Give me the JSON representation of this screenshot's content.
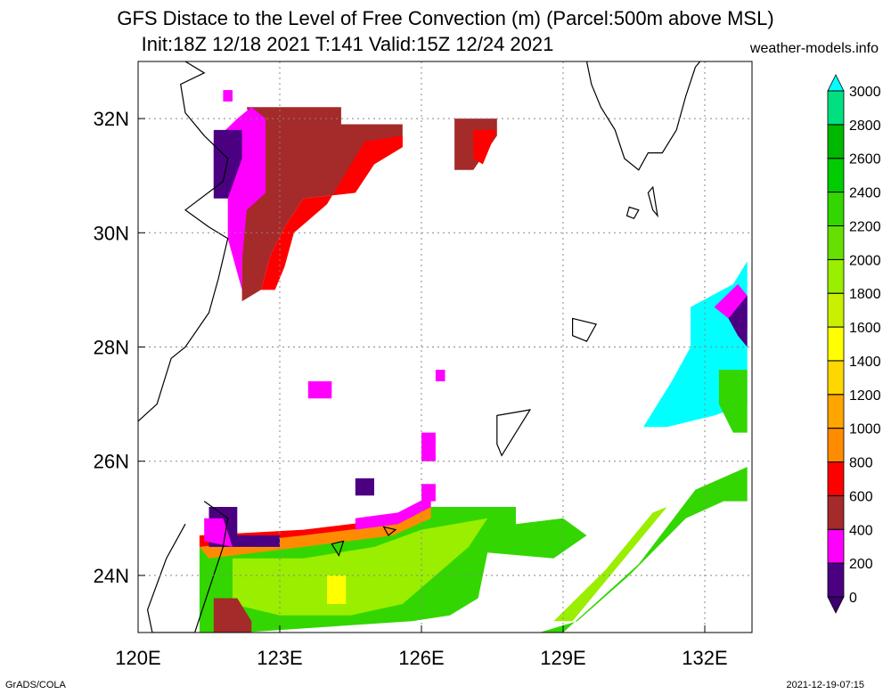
{
  "title_line1": "GFS Distace to the Level of Free Convection (m) (Parcel:500m above MSL)",
  "title_line2": "Init:18Z 12/18 2021 T:141 Valid:15Z 12/24 2021",
  "site": "weather-models.info",
  "footer_left": "GrADS/COLA",
  "footer_right": "2021-12-19-07:15",
  "map": {
    "lon_range": [
      120,
      133
    ],
    "lat_range": [
      23,
      33
    ],
    "lon_ticks": [
      {
        "value": 120,
        "label": "120E"
      },
      {
        "value": 123,
        "label": "123E"
      },
      {
        "value": 126,
        "label": "126E"
      },
      {
        "value": 129,
        "label": "129E"
      },
      {
        "value": 132,
        "label": "132E"
      }
    ],
    "lat_ticks": [
      {
        "value": 24,
        "label": "24N"
      },
      {
        "value": 26,
        "label": "26N"
      },
      {
        "value": 28,
        "label": "28N"
      },
      {
        "value": 30,
        "label": "30N"
      },
      {
        "value": 32,
        "label": "32N"
      }
    ]
  },
  "colorbar": {
    "levels": [
      {
        "value": 0,
        "label": "0",
        "color": "#4b0082"
      },
      {
        "value": 200,
        "label": "200",
        "color": "#ff00ff"
      },
      {
        "value": 400,
        "label": "400",
        "color": "#a52a2a"
      },
      {
        "value": 600,
        "label": "600",
        "color": "#ff0000"
      },
      {
        "value": 800,
        "label": "800",
        "color": "#ff8c00"
      },
      {
        "value": 1000,
        "label": "1000",
        "color": "#ffa500"
      },
      {
        "value": 1200,
        "label": "1200",
        "color": "#ffd700"
      },
      {
        "value": 1400,
        "label": "1400",
        "color": "#ffff00"
      },
      {
        "value": 1600,
        "label": "1600",
        "color": "#c8f000"
      },
      {
        "value": 1800,
        "label": "1800",
        "color": "#9aee00"
      },
      {
        "value": 2000,
        "label": "2000",
        "color": "#66e000"
      },
      {
        "value": 2200,
        "label": "2200",
        "color": "#33d600"
      },
      {
        "value": 2400,
        "label": "2400",
        "color": "#00cc00"
      },
      {
        "value": 2600,
        "label": "2600",
        "color": "#00b800"
      },
      {
        "value": 2800,
        "label": "2800",
        "color": "#00e080"
      },
      {
        "value": 3000,
        "label": "3000",
        "color": "#00e6cc"
      }
    ],
    "over_color": "#00ffff",
    "under_color": "#3a0070"
  },
  "fields": [
    {
      "name": "northwest-low-lfc",
      "color": "#a52a2a",
      "points": [
        [
          122.3,
          32.2
        ],
        [
          124.3,
          32.2
        ],
        [
          124.3,
          31.9
        ],
        [
          125.6,
          31.9
        ],
        [
          125.6,
          31.5
        ],
        [
          125.0,
          31.2
        ],
        [
          124.6,
          30.7
        ],
        [
          123.5,
          30.6
        ],
        [
          123.1,
          30.1
        ],
        [
          122.8,
          29.6
        ],
        [
          122.6,
          29.0
        ],
        [
          122.2,
          28.8
        ],
        [
          122.2,
          30.5
        ],
        [
          122.5,
          31.5
        ]
      ]
    },
    {
      "name": "northwest-red-fringe",
      "color": "#ff0000",
      "points": [
        [
          122.6,
          29.0
        ],
        [
          122.8,
          29.6
        ],
        [
          123.1,
          30.1
        ],
        [
          123.5,
          30.6
        ],
        [
          124.6,
          30.7
        ],
        [
          125.0,
          31.2
        ],
        [
          125.6,
          31.5
        ],
        [
          125.6,
          31.7
        ],
        [
          124.8,
          31.6
        ],
        [
          124.0,
          30.5
        ],
        [
          123.3,
          30.0
        ],
        [
          123.1,
          29.4
        ],
        [
          122.9,
          29.0
        ]
      ]
    },
    {
      "name": "northwest-magenta",
      "color": "#ff00ff",
      "points": [
        [
          122.1,
          32.0
        ],
        [
          122.4,
          32.2
        ],
        [
          122.7,
          32.0
        ],
        [
          122.7,
          30.7
        ],
        [
          122.3,
          30.4
        ],
        [
          122.2,
          29.5
        ],
        [
          122.2,
          29.0
        ],
        [
          121.9,
          29.9
        ],
        [
          121.9,
          30.6
        ],
        [
          121.6,
          30.8
        ],
        [
          121.6,
          31.6
        ]
      ]
    },
    {
      "name": "northwest-indigo",
      "color": "#4b0082",
      "points": [
        [
          121.6,
          31.8
        ],
        [
          122.2,
          31.8
        ],
        [
          122.2,
          31.3
        ],
        [
          121.9,
          30.6
        ],
        [
          121.6,
          30.6
        ]
      ]
    },
    {
      "name": "east-china-sea-brown-patch",
      "color": "#a52a2a",
      "points": [
        [
          126.7,
          32.0
        ],
        [
          127.6,
          32.0
        ],
        [
          127.6,
          31.7
        ],
        [
          127.1,
          31.1
        ],
        [
          126.7,
          31.1
        ]
      ]
    },
    {
      "name": "east-china-sea-red-patch",
      "color": "#ff0000",
      "points": [
        [
          127.1,
          31.8
        ],
        [
          127.6,
          31.8
        ],
        [
          127.3,
          31.2
        ],
        [
          127.1,
          31.3
        ]
      ]
    },
    {
      "name": "south-green-band",
      "color": "#33d600",
      "points": [
        [
          121.3,
          24.5
        ],
        [
          123.5,
          24.7
        ],
        [
          125.5,
          24.9
        ],
        [
          126.2,
          25.2
        ],
        [
          128.0,
          25.2
        ],
        [
          128.0,
          24.9
        ],
        [
          129.0,
          25.0
        ],
        [
          129.5,
          24.7
        ],
        [
          128.8,
          24.3
        ],
        [
          127.4,
          24.4
        ],
        [
          127.2,
          23.6
        ],
        [
          126.6,
          23.3
        ],
        [
          125.8,
          23.2
        ],
        [
          122.2,
          23.0
        ],
        [
          121.3,
          23.0
        ]
      ]
    },
    {
      "name": "south-lightgreen-core",
      "color": "#9aee00",
      "points": [
        [
          122.0,
          24.3
        ],
        [
          123.5,
          24.3
        ],
        [
          125.0,
          24.5
        ],
        [
          126.0,
          24.8
        ],
        [
          127.4,
          25.0
        ],
        [
          127.0,
          24.5
        ],
        [
          126.3,
          24.0
        ],
        [
          125.6,
          23.5
        ],
        [
          124.5,
          23.3
        ],
        [
          123.0,
          23.3
        ],
        [
          122.0,
          23.5
        ]
      ]
    },
    {
      "name": "south-yellow-spots",
      "color": "#ffff00",
      "points": [
        [
          124.0,
          24.0
        ],
        [
          124.4,
          24.0
        ],
        [
          124.4,
          23.5
        ],
        [
          124.0,
          23.5
        ]
      ]
    },
    {
      "name": "south-orange-edge",
      "color": "#ff8c00",
      "points": [
        [
          121.3,
          24.5
        ],
        [
          123.5,
          24.7
        ],
        [
          125.5,
          24.9
        ],
        [
          126.2,
          25.2
        ],
        [
          126.2,
          25.0
        ],
        [
          125.4,
          24.7
        ],
        [
          123.5,
          24.5
        ],
        [
          121.5,
          24.3
        ]
      ]
    },
    {
      "name": "south-red-edge",
      "color": "#ff0000",
      "points": [
        [
          121.3,
          24.7
        ],
        [
          123.5,
          24.8
        ],
        [
          125.5,
          25.0
        ],
        [
          126.2,
          25.3
        ],
        [
          126.2,
          25.2
        ],
        [
          125.5,
          24.9
        ],
        [
          123.5,
          24.7
        ],
        [
          121.3,
          24.5
        ]
      ]
    },
    {
      "name": "south-magenta-edge",
      "color": "#ff00ff",
      "points": [
        [
          124.6,
          25.0
        ],
        [
          125.5,
          25.1
        ],
        [
          126.2,
          25.4
        ],
        [
          126.2,
          25.2
        ],
        [
          125.5,
          24.9
        ],
        [
          124.6,
          24.8
        ]
      ]
    },
    {
      "name": "taiwan-strait-indigo",
      "color": "#4b0082",
      "points": [
        [
          121.5,
          25.2
        ],
        [
          122.1,
          25.2
        ],
        [
          122.1,
          24.7
        ],
        [
          123.0,
          24.7
        ],
        [
          123.0,
          24.5
        ],
        [
          121.5,
          24.5
        ]
      ]
    },
    {
      "name": "taiwan-magenta",
      "color": "#ff00ff",
      "points": [
        [
          121.4,
          25.0
        ],
        [
          121.8,
          25.0
        ],
        [
          122.0,
          24.5
        ],
        [
          121.4,
          24.6
        ]
      ]
    },
    {
      "name": "south-brown-spot",
      "color": "#a52a2a",
      "points": [
        [
          121.6,
          23.6
        ],
        [
          122.1,
          23.6
        ],
        [
          122.4,
          23.2
        ],
        [
          122.4,
          23.0
        ],
        [
          121.6,
          23.0
        ]
      ]
    },
    {
      "name": "southeast-diagonal-green",
      "color": "#33d600",
      "points": [
        [
          128.5,
          23.0
        ],
        [
          129.0,
          23.0
        ],
        [
          130.6,
          24.2
        ],
        [
          131.8,
          25.5
        ],
        [
          132.9,
          25.9
        ],
        [
          132.9,
          25.3
        ],
        [
          132.4,
          25.3
        ],
        [
          131.6,
          25.0
        ],
        [
          130.4,
          24.0
        ],
        [
          129.3,
          23.2
        ]
      ]
    },
    {
      "name": "southeast-lightgreen",
      "color": "#9aee00",
      "points": [
        [
          128.8,
          23.2
        ],
        [
          129.2,
          23.2
        ],
        [
          130.3,
          24.3
        ],
        [
          131.2,
          25.2
        ],
        [
          130.9,
          25.1
        ],
        [
          129.9,
          24.1
        ]
      ]
    },
    {
      "name": "far-east-cyan",
      "color": "#00ffff",
      "points": [
        [
          131.7,
          28.7
        ],
        [
          132.6,
          29.1
        ],
        [
          132.9,
          29.5
        ],
        [
          132.9,
          27.0
        ],
        [
          132.2,
          26.8
        ],
        [
          131.2,
          26.6
        ],
        [
          130.7,
          26.6
        ],
        [
          131.3,
          27.4
        ],
        [
          131.7,
          28.0
        ]
      ]
    },
    {
      "name": "far-east-green",
      "color": "#33d600",
      "points": [
        [
          132.3,
          27.6
        ],
        [
          132.9,
          27.6
        ],
        [
          132.9,
          26.5
        ],
        [
          132.6,
          26.5
        ],
        [
          132.3,
          27.0
        ]
      ]
    },
    {
      "name": "far-east-magenta",
      "color": "#ff00ff",
      "points": [
        [
          132.2,
          28.7
        ],
        [
          132.7,
          29.1
        ],
        [
          132.9,
          28.9
        ],
        [
          132.9,
          28.3
        ],
        [
          132.5,
          28.5
        ]
      ]
    },
    {
      "name": "far-east-indigo",
      "color": "#4b0082",
      "points": [
        [
          132.5,
          28.5
        ],
        [
          132.9,
          28.9
        ],
        [
          132.9,
          28.0
        ],
        [
          132.7,
          28.2
        ]
      ]
    },
    {
      "name": "scattered-magenta-1",
      "color": "#ff00ff",
      "points": [
        [
          123.6,
          27.4
        ],
        [
          124.1,
          27.4
        ],
        [
          124.1,
          27.1
        ],
        [
          123.6,
          27.1
        ]
      ]
    },
    {
      "name": "scattered-magenta-2",
      "color": "#ff00ff",
      "points": [
        [
          126.3,
          27.6
        ],
        [
          126.5,
          27.6
        ],
        [
          126.5,
          27.4
        ],
        [
          126.3,
          27.4
        ]
      ]
    },
    {
      "name": "scattered-magenta-3",
      "color": "#ff00ff",
      "points": [
        [
          126.0,
          26.5
        ],
        [
          126.3,
          26.5
        ],
        [
          126.3,
          26.0
        ],
        [
          126.0,
          26.0
        ]
      ]
    },
    {
      "name": "scattered-indigo-1",
      "color": "#4b0082",
      "points": [
        [
          124.6,
          25.7
        ],
        [
          125.0,
          25.7
        ],
        [
          125.0,
          25.4
        ],
        [
          124.6,
          25.4
        ]
      ]
    },
    {
      "name": "scattered-magenta-4",
      "color": "#ff00ff",
      "points": [
        [
          121.8,
          32.5
        ],
        [
          122.0,
          32.5
        ],
        [
          122.0,
          32.3
        ],
        [
          121.8,
          32.3
        ]
      ]
    },
    {
      "name": "scattered-magenta-5",
      "color": "#ff00ff",
      "points": [
        [
          126.0,
          25.6
        ],
        [
          126.3,
          25.6
        ],
        [
          126.3,
          25.3
        ],
        [
          126.0,
          25.3
        ]
      ]
    }
  ],
  "islands": [
    {
      "name": "kyushu-coast",
      "points": [
        [
          129.5,
          33.0
        ],
        [
          129.6,
          32.6
        ],
        [
          129.8,
          32.2
        ],
        [
          130.1,
          31.8
        ],
        [
          130.3,
          31.3
        ],
        [
          130.6,
          31.1
        ],
        [
          130.8,
          31.4
        ],
        [
          131.1,
          31.4
        ],
        [
          131.4,
          31.8
        ],
        [
          131.6,
          32.4
        ],
        [
          131.8,
          32.9
        ],
        [
          131.9,
          33.0
        ]
      ]
    },
    {
      "name": "tanegashima",
      "points": [
        [
          130.9,
          30.8
        ],
        [
          131.0,
          30.3
        ],
        [
          130.9,
          30.4
        ],
        [
          130.8,
          30.7
        ]
      ]
    },
    {
      "name": "yakushima",
      "points": [
        [
          130.4,
          30.45
        ],
        [
          130.6,
          30.4
        ],
        [
          130.5,
          30.25
        ],
        [
          130.35,
          30.3
        ]
      ]
    },
    {
      "name": "amami",
      "points": [
        [
          129.2,
          28.5
        ],
        [
          129.7,
          28.4
        ],
        [
          129.5,
          28.1
        ],
        [
          129.2,
          28.2
        ]
      ]
    },
    {
      "name": "okinawa",
      "points": [
        [
          127.6,
          26.8
        ],
        [
          128.3,
          26.9
        ],
        [
          128.0,
          26.5
        ],
        [
          127.7,
          26.1
        ],
        [
          127.6,
          26.3
        ]
      ]
    },
    {
      "name": "miyako",
      "points": [
        [
          125.2,
          24.85
        ],
        [
          125.45,
          24.8
        ],
        [
          125.3,
          24.7
        ]
      ]
    },
    {
      "name": "ishigaki",
      "points": [
        [
          124.1,
          24.55
        ],
        [
          124.35,
          24.6
        ],
        [
          124.25,
          24.35
        ]
      ]
    },
    {
      "name": "taiwan-coast",
      "points": [
        [
          121.4,
          25.3
        ],
        [
          121.9,
          25.0
        ],
        [
          121.8,
          24.5
        ],
        [
          121.6,
          24.0
        ],
        [
          121.4,
          23.5
        ],
        [
          121.2,
          23.0
        ],
        [
          120.3,
          23.0
        ],
        [
          120.2,
          23.4
        ],
        [
          120.6,
          24.3
        ],
        [
          121.0,
          24.9
        ]
      ]
    },
    {
      "name": "china-coast",
      "points": [
        [
          120.0,
          26.7
        ],
        [
          120.4,
          27.0
        ],
        [
          120.7,
          27.8
        ],
        [
          121.0,
          28.0
        ],
        [
          121.5,
          28.6
        ],
        [
          121.7,
          29.2
        ],
        [
          121.9,
          29.9
        ],
        [
          121.5,
          30.1
        ],
        [
          121.0,
          30.4
        ],
        [
          121.8,
          30.9
        ],
        [
          121.9,
          31.3
        ],
        [
          121.4,
          31.7
        ],
        [
          121.0,
          32.1
        ],
        [
          120.9,
          32.6
        ],
        [
          121.4,
          32.8
        ],
        [
          121.0,
          33.0
        ]
      ]
    }
  ]
}
